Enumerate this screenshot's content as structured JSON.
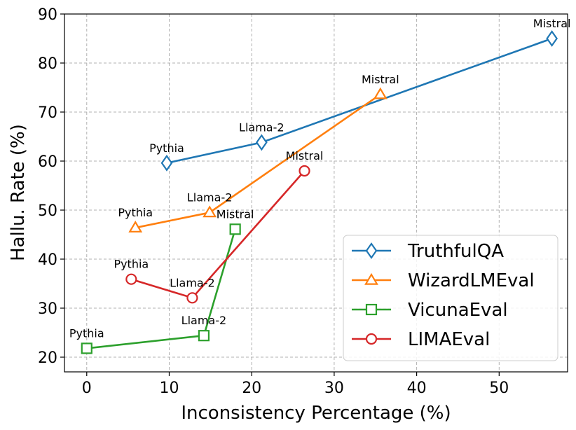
{
  "chart_data": {
    "type": "line",
    "title": "",
    "xlabel": "Inconsistency Percentage (%)",
    "ylabel": "Hallu. Rate (%)",
    "xlim": [
      -2.7,
      58.3
    ],
    "ylim": [
      17,
      90
    ],
    "xticks": [
      0,
      10,
      20,
      30,
      40,
      50
    ],
    "yticks": [
      20,
      30,
      40,
      50,
      60,
      70,
      80,
      90
    ],
    "grid": true,
    "legend_position": "bottom-right",
    "series": [
      {
        "name": "TruthfulQA",
        "color": "#1f77b4",
        "marker": "diamond",
        "points": [
          {
            "x": 9.7,
            "y": 59.6,
            "label": "Pythia"
          },
          {
            "x": 21.2,
            "y": 63.8,
            "label": "Llama-2"
          },
          {
            "x": 56.4,
            "y": 85.0,
            "label": "Mistral"
          }
        ]
      },
      {
        "name": "WizardLMEval",
        "color": "#ff7f0e",
        "marker": "triangle",
        "points": [
          {
            "x": 5.9,
            "y": 46.4,
            "label": "Pythia"
          },
          {
            "x": 14.9,
            "y": 49.5,
            "label": "Llama-2"
          },
          {
            "x": 35.6,
            "y": 73.6,
            "label": "Mistral"
          }
        ]
      },
      {
        "name": "VicunaEval",
        "color": "#2ca02c",
        "marker": "square",
        "points": [
          {
            "x": 0.0,
            "y": 21.8,
            "label": "Pythia"
          },
          {
            "x": 14.2,
            "y": 24.4,
            "label": "Llama-2"
          },
          {
            "x": 18.0,
            "y": 46.1,
            "label": "Mistral"
          }
        ]
      },
      {
        "name": "LIMAEval",
        "color": "#d62728",
        "marker": "circle",
        "points": [
          {
            "x": 5.4,
            "y": 35.9,
            "label": "Pythia"
          },
          {
            "x": 12.8,
            "y": 32.1,
            "label": "Llama-2"
          },
          {
            "x": 26.4,
            "y": 58.0,
            "label": "Mistral"
          }
        ]
      }
    ]
  }
}
